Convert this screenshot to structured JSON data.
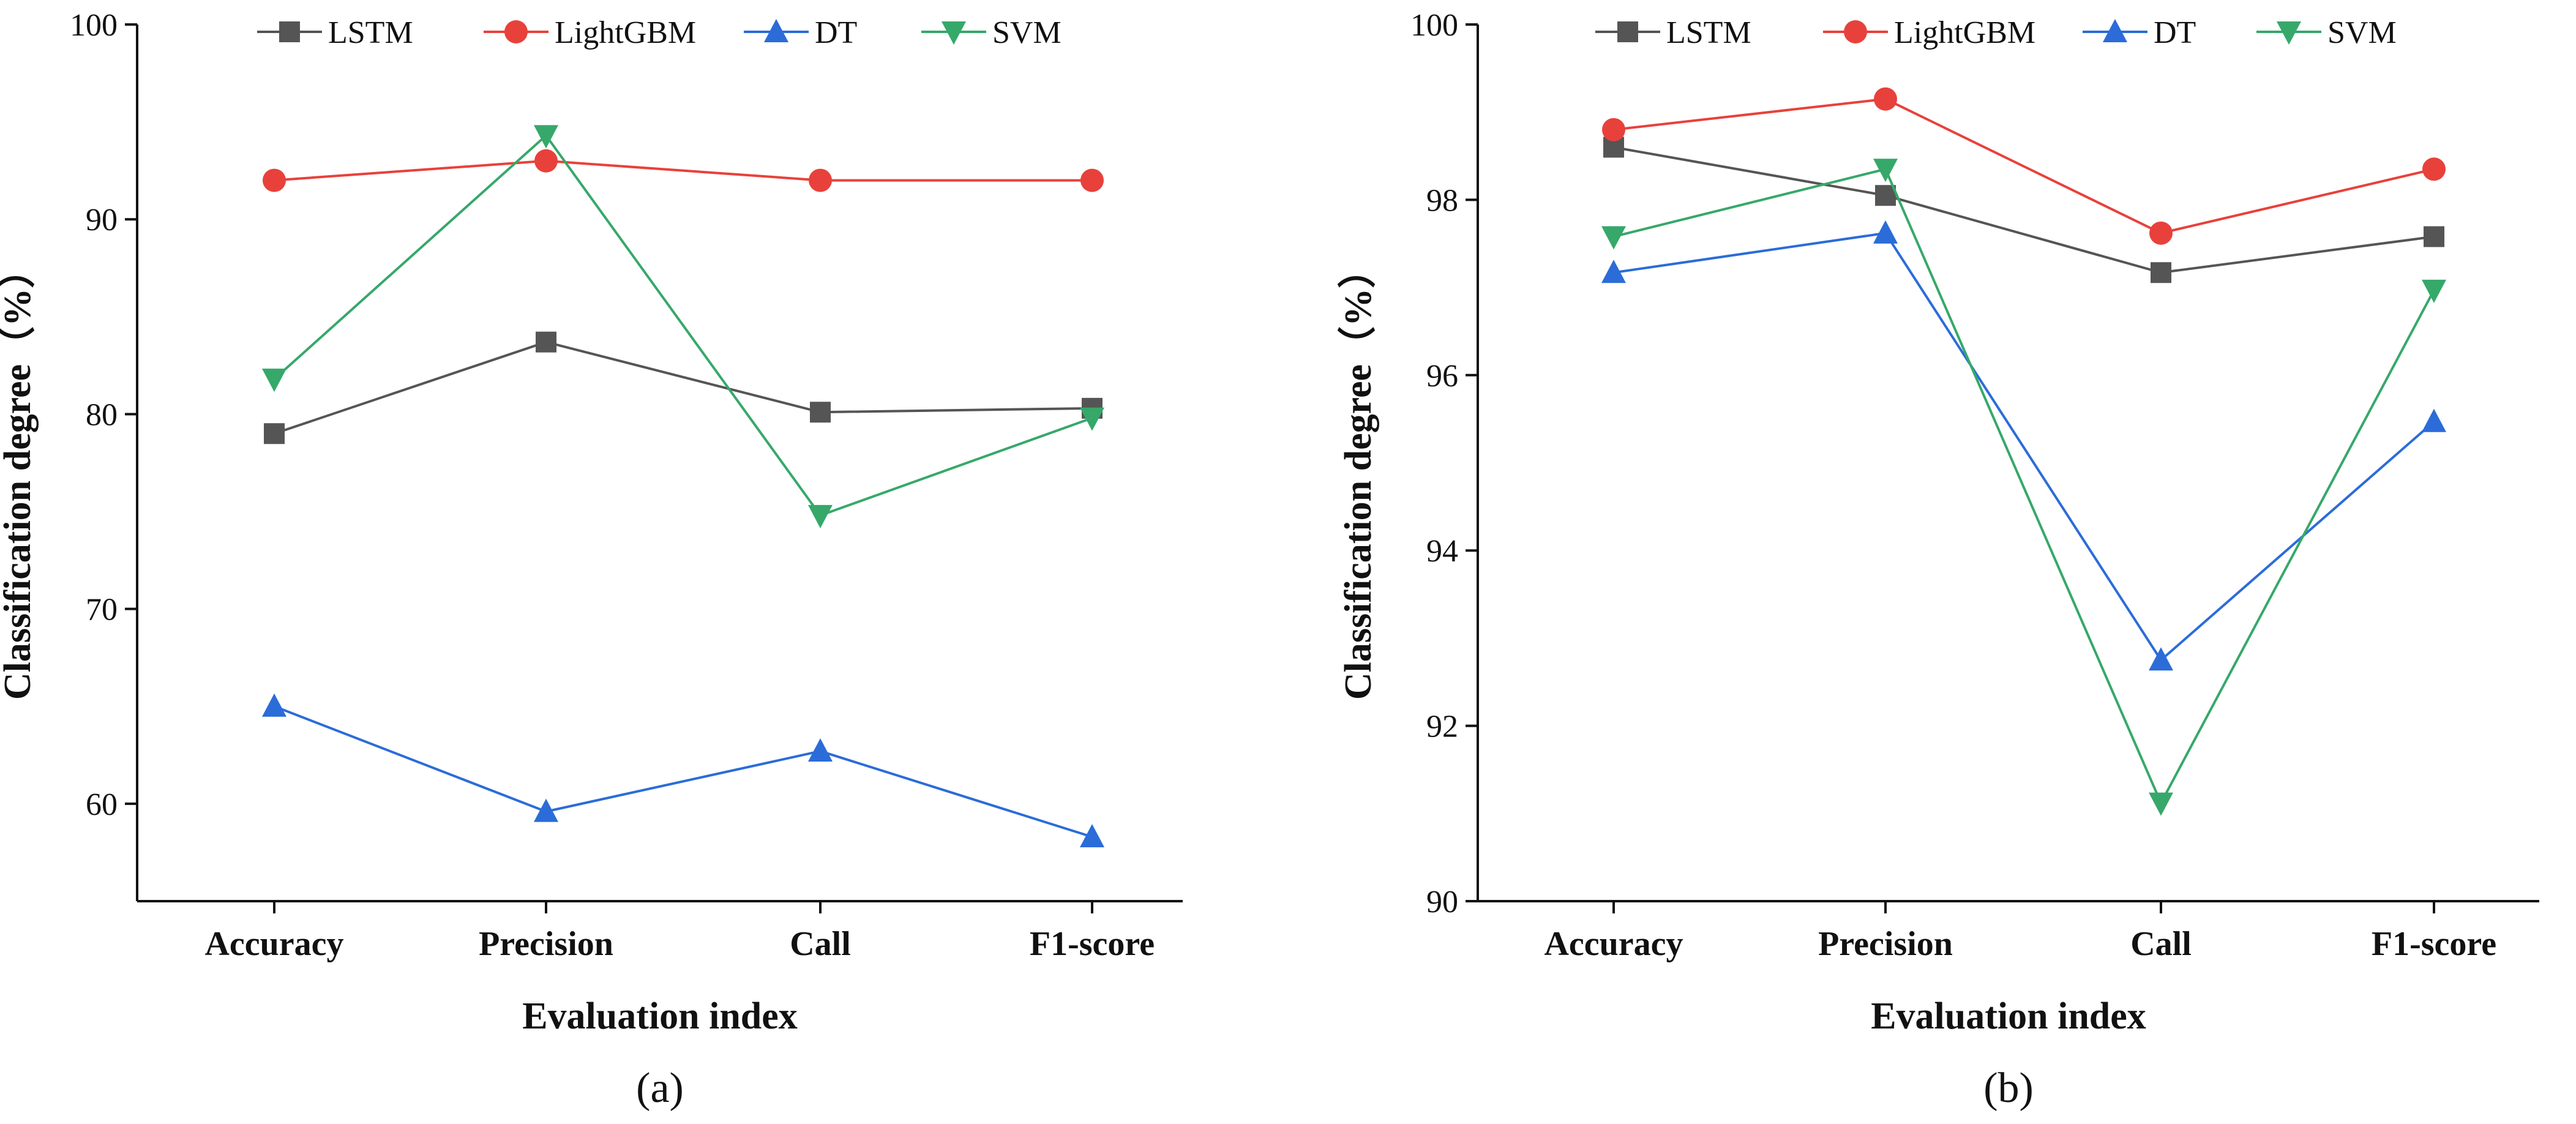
{
  "colors": {
    "LSTM": "#555555",
    "LightGBM": "#E8413B",
    "DT": "#2B6CD8",
    "SVM": "#36A86A",
    "axis": "#111111"
  },
  "chart_data": [
    {
      "type": "line",
      "panel_label": "(a)",
      "xlabel": "Evaluation index",
      "ylabel": "Classification degree（%）",
      "ylim": [
        55,
        100
      ],
      "yticks": [
        "60",
        "70",
        "80",
        "90",
        "100"
      ],
      "ytick_values": [
        60,
        70,
        80,
        90,
        100
      ],
      "categories": [
        "Accuracy",
        "Precision",
        "Call",
        "F1-score"
      ],
      "legend_position": "top",
      "series": [
        {
          "name": "LSTM",
          "marker": "square",
          "values": [
            79.0,
            83.7,
            80.1,
            80.3
          ]
        },
        {
          "name": "LightGBM",
          "marker": "circle",
          "values": [
            92.0,
            93.0,
            92.0,
            92.0
          ]
        },
        {
          "name": "DT",
          "marker": "triangle-up",
          "values": [
            65.0,
            59.6,
            62.7,
            58.3
          ]
        },
        {
          "name": "SVM",
          "marker": "triangle-down",
          "values": [
            81.8,
            94.3,
            74.8,
            79.8
          ]
        }
      ]
    },
    {
      "type": "line",
      "panel_label": "(b)",
      "xlabel": "Evaluation index",
      "ylabel": "Classification degree（%）",
      "ylim": [
        90,
        100
      ],
      "yticks": [
        "90",
        "92",
        "94",
        "96",
        "98",
        "100"
      ],
      "ytick_values": [
        90,
        92,
        94,
        96,
        98,
        100
      ],
      "categories": [
        "Accuracy",
        "Precision",
        "Call",
        "F1-score"
      ],
      "legend_position": "top",
      "series": [
        {
          "name": "LSTM",
          "marker": "square",
          "values": [
            98.6,
            98.05,
            97.17,
            97.58
          ]
        },
        {
          "name": "LightGBM",
          "marker": "circle",
          "values": [
            98.8,
            99.15,
            97.62,
            98.35
          ]
        },
        {
          "name": "DT",
          "marker": "triangle-up",
          "values": [
            97.17,
            97.62,
            92.75,
            95.47
          ]
        },
        {
          "name": "SVM",
          "marker": "triangle-down",
          "values": [
            97.58,
            98.35,
            91.12,
            96.97
          ]
        }
      ]
    }
  ]
}
